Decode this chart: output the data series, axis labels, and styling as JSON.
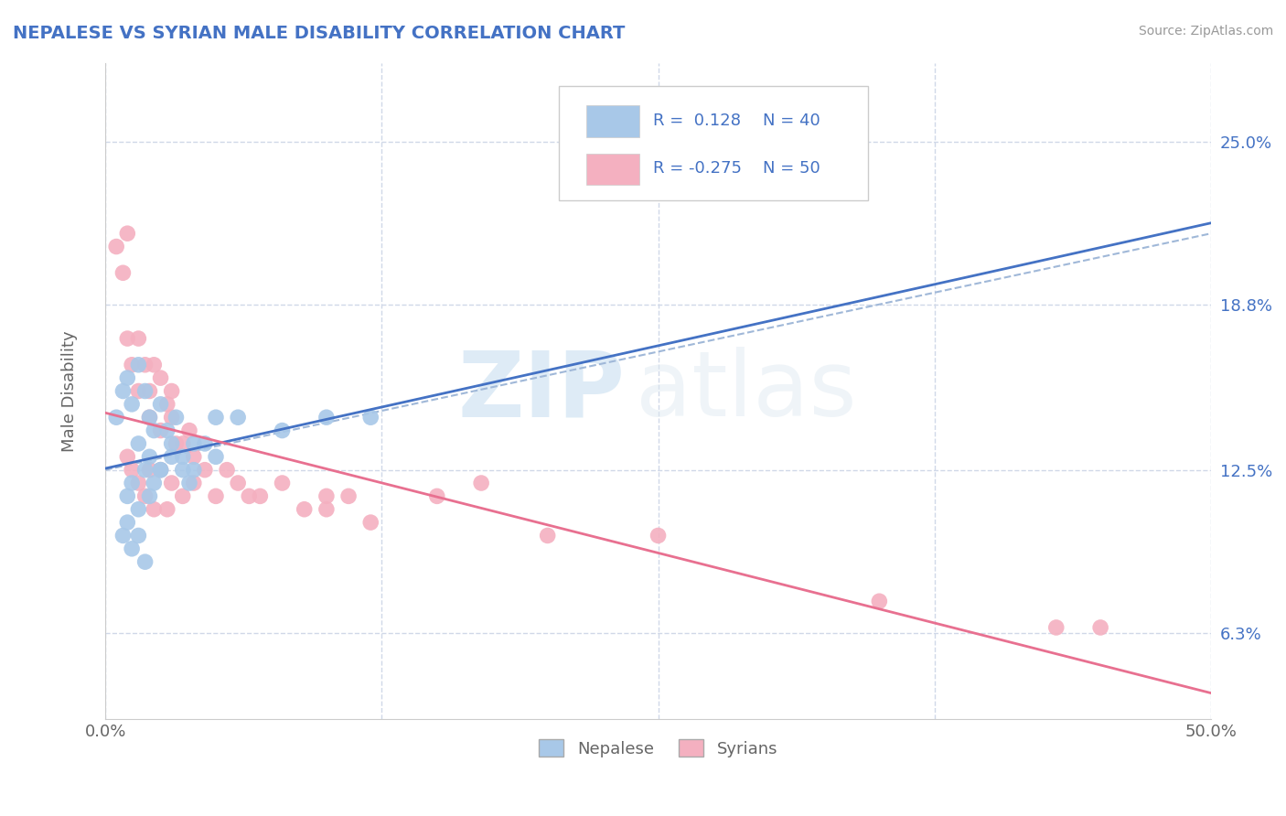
{
  "title": "NEPALESE VS SYRIAN MALE DISABILITY CORRELATION CHART",
  "source": "Source: ZipAtlas.com",
  "ylabel": "Male Disability",
  "y_ticks": [
    0.063,
    0.125,
    0.188,
    0.25
  ],
  "y_tick_labels": [
    "6.3%",
    "12.5%",
    "18.8%",
    "25.0%"
  ],
  "x_range": [
    0.0,
    0.5
  ],
  "y_range": [
    0.03,
    0.28
  ],
  "nepalese_R": 0.128,
  "nepalese_N": 40,
  "syrian_R": -0.275,
  "syrian_N": 50,
  "nepalese_color": "#a8c8e8",
  "syrian_color": "#f4b0c0",
  "nepalese_line_color": "#4472c4",
  "syrian_line_color": "#e87090",
  "dashed_line_color": "#a0b8d8",
  "background_color": "#ffffff",
  "grid_color": "#d0d8e8",
  "watermark_zip": "ZIP",
  "watermark_atlas": "atlas",
  "nepalese_x": [
    0.005,
    0.008,
    0.01,
    0.012,
    0.015,
    0.015,
    0.018,
    0.02,
    0.02,
    0.022,
    0.025,
    0.025,
    0.028,
    0.03,
    0.032,
    0.035,
    0.038,
    0.04,
    0.045,
    0.05,
    0.01,
    0.012,
    0.015,
    0.018,
    0.02,
    0.022,
    0.025,
    0.03,
    0.035,
    0.04,
    0.008,
    0.01,
    0.012,
    0.015,
    0.018,
    0.05,
    0.06,
    0.08,
    0.1,
    0.12
  ],
  "nepalese_y": [
    0.145,
    0.155,
    0.16,
    0.15,
    0.165,
    0.135,
    0.155,
    0.145,
    0.13,
    0.14,
    0.15,
    0.125,
    0.14,
    0.135,
    0.145,
    0.13,
    0.12,
    0.125,
    0.135,
    0.13,
    0.115,
    0.12,
    0.11,
    0.125,
    0.115,
    0.12,
    0.125,
    0.13,
    0.125,
    0.135,
    0.1,
    0.105,
    0.095,
    0.1,
    0.09,
    0.145,
    0.145,
    0.14,
    0.145,
    0.145
  ],
  "syrian_x": [
    0.005,
    0.008,
    0.01,
    0.01,
    0.012,
    0.015,
    0.015,
    0.018,
    0.02,
    0.02,
    0.022,
    0.025,
    0.025,
    0.028,
    0.03,
    0.03,
    0.032,
    0.035,
    0.038,
    0.04,
    0.04,
    0.045,
    0.05,
    0.055,
    0.06,
    0.065,
    0.07,
    0.08,
    0.09,
    0.1,
    0.01,
    0.012,
    0.015,
    0.018,
    0.02,
    0.022,
    0.025,
    0.028,
    0.03,
    0.035,
    0.1,
    0.11,
    0.12,
    0.15,
    0.17,
    0.2,
    0.25,
    0.35,
    0.43,
    0.45
  ],
  "syrian_y": [
    0.21,
    0.2,
    0.215,
    0.175,
    0.165,
    0.175,
    0.155,
    0.165,
    0.145,
    0.155,
    0.165,
    0.16,
    0.14,
    0.15,
    0.155,
    0.145,
    0.135,
    0.135,
    0.14,
    0.13,
    0.12,
    0.125,
    0.115,
    0.125,
    0.12,
    0.115,
    0.115,
    0.12,
    0.11,
    0.115,
    0.13,
    0.125,
    0.12,
    0.115,
    0.125,
    0.11,
    0.125,
    0.11,
    0.12,
    0.115,
    0.11,
    0.115,
    0.105,
    0.115,
    0.12,
    0.1,
    0.1,
    0.075,
    0.065,
    0.065
  ]
}
